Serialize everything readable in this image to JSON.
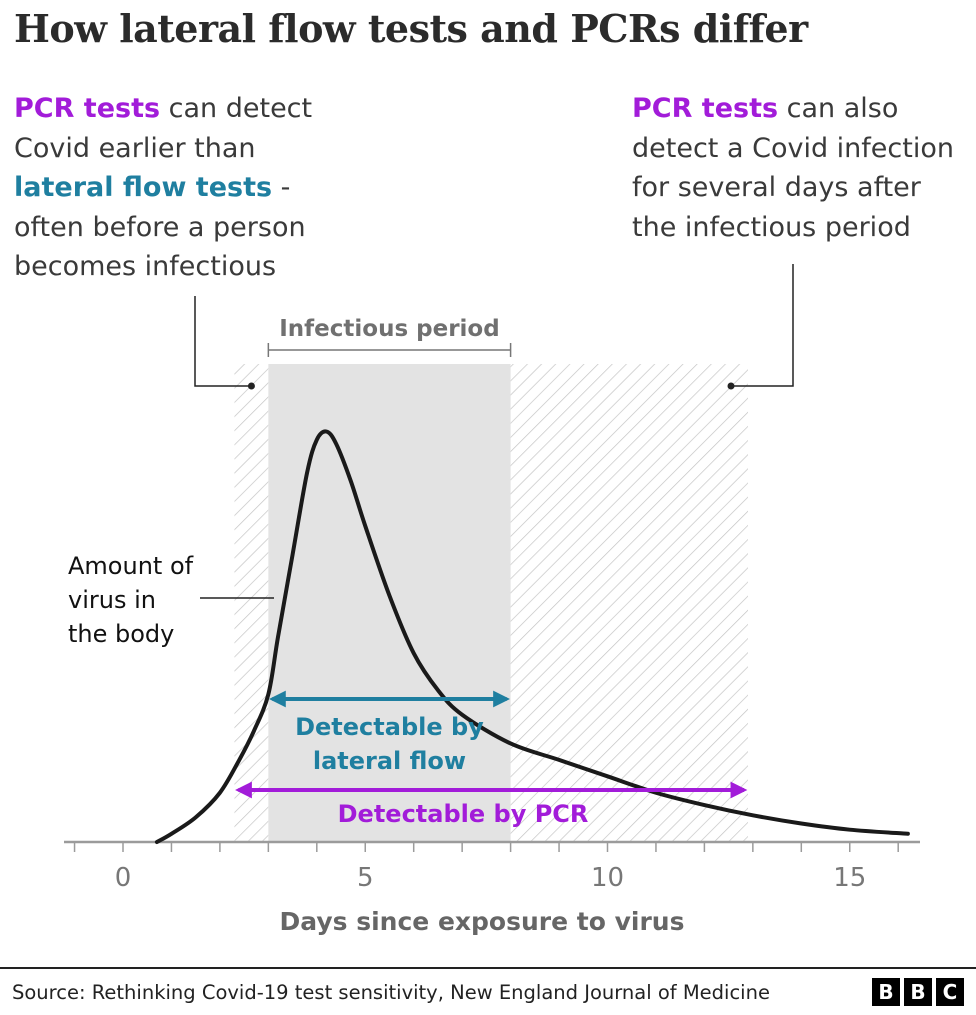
{
  "title": "How lateral flow tests and PCRs differ",
  "annotation_left": {
    "pcr": "PCR tests",
    "t1": " can detect Covid earlier than ",
    "lateral": "lateral flow tests",
    "t2": " - often before a person becomes infectious"
  },
  "annotation_right": {
    "pcr": "PCR tests",
    "t1": " can also detect a Covid infection for several days after the infectious period"
  },
  "source": "Source: Rethinking Covid-19 test sensitivity, New England Journal of Medicine",
  "logo": [
    "B",
    "B",
    "C"
  ],
  "colors": {
    "pcr": "#a21cd9",
    "lateral_flow": "#1f7fa0",
    "curve": "#1a1a1a",
    "infectious_shade": "#e3e3e3",
    "hatch": "#c4c4c4",
    "axis": "#9b9b9b"
  },
  "chart_data": {
    "type": "line",
    "title": "How lateral flow tests and PCRs differ",
    "xlabel": "Days since exposure to virus",
    "ylabel": "",
    "xlim": [
      -2.4,
      16.3
    ],
    "x_ticks": [
      0,
      5,
      10,
      15
    ],
    "x_minor_tick_step": 1,
    "grid": false,
    "series": [
      {
        "name": "Amount of virus in the body",
        "x": [
          0.7,
          1.0,
          1.5,
          2.0,
          2.4,
          2.7,
          3.0,
          3.2,
          3.5,
          3.8,
          4.0,
          4.2,
          4.4,
          4.7,
          5.0,
          5.5,
          6.0,
          6.5,
          7.0,
          8.0,
          9.0,
          10.0,
          11.0,
          12.0,
          13.0,
          14.0,
          15.0,
          16.2
        ],
        "y": [
          0.0,
          0.02,
          0.06,
          0.12,
          0.2,
          0.27,
          0.36,
          0.5,
          0.7,
          0.9,
          0.98,
          1.0,
          0.97,
          0.88,
          0.77,
          0.6,
          0.46,
          0.37,
          0.31,
          0.24,
          0.2,
          0.16,
          0.12,
          0.09,
          0.065,
          0.045,
          0.03,
          0.02
        ]
      }
    ],
    "ylim": [
      0,
      1.05
    ],
    "regions": [
      {
        "kind": "hatched",
        "x0": 2.3,
        "x1": 3.0
      },
      {
        "kind": "infectious",
        "label": "Infectious period",
        "x0": 3.0,
        "x1": 8.0
      },
      {
        "kind": "hatched",
        "x0": 8.0,
        "x1": 12.9
      }
    ],
    "ranges": [
      {
        "label_lines": [
          "Detectable by",
          "lateral flow"
        ],
        "x0": 3.0,
        "x1": 8.0,
        "y": 0.26,
        "color": "#1f7fa0"
      },
      {
        "label_lines": [
          "Detectable by PCR"
        ],
        "x0": 2.3,
        "x1": 12.9,
        "y": 0.1,
        "color": "#a21cd9"
      }
    ],
    "curve_label_lines": [
      "Amount of",
      "virus in",
      "the body"
    ]
  }
}
